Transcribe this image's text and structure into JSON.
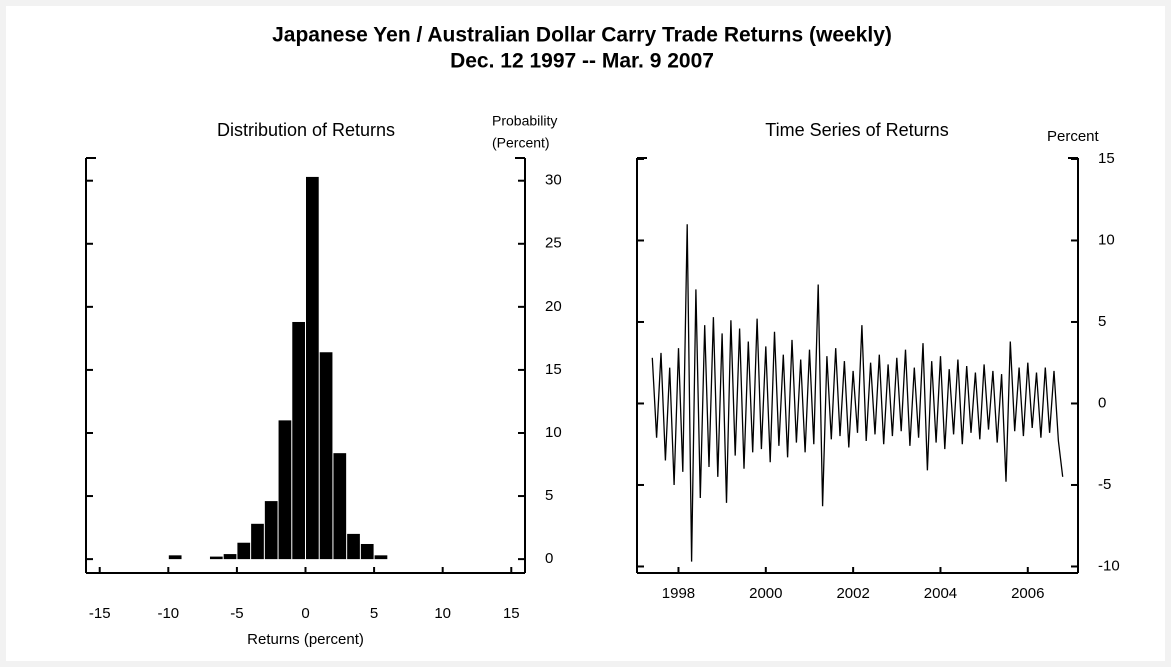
{
  "header": {
    "title": "Japanese Yen / Australian Dollar Carry Trade Returns (weekly)",
    "subtitle": "Dec. 12 1997 -- Mar. 9 2007"
  },
  "chart_data": [
    {
      "type": "histogram",
      "title": "Distribution of Returns",
      "xlabel": "Returns (percent)",
      "ylabel": [
        "Probability",
        "(Percent)"
      ],
      "color": "#000000",
      "bins": [
        -10,
        -9,
        -8,
        -7,
        -6,
        -5,
        -4,
        -3,
        -2,
        -1,
        0,
        1,
        2,
        3,
        4,
        5,
        6
      ],
      "values": [
        0.3,
        0,
        0,
        0.2,
        0.4,
        1.3,
        2.8,
        4.6,
        11,
        18.8,
        30.3,
        16.4,
        8.4,
        2.0,
        1.2,
        0.3
      ],
      "xlim": [
        -16,
        16
      ],
      "xticks": [
        -15,
        -10,
        -5,
        0,
        5,
        10,
        15
      ],
      "ylim": [
        -1.1,
        31.8
      ],
      "yticks": [
        0,
        5,
        10,
        15,
        20,
        25,
        30
      ]
    },
    {
      "type": "line",
      "title": "Time Series of Returns",
      "ylabel": [
        "Percent"
      ],
      "color": "#000000",
      "x": [
        1997.4,
        1997.5,
        1997.6,
        1997.7,
        1997.8,
        1997.9,
        1998.0,
        1998.1,
        1998.2,
        1998.3,
        1998.4,
        1998.5,
        1998.6,
        1998.7,
        1998.8,
        1998.9,
        1999.0,
        1999.1,
        1999.2,
        1999.3,
        1999.4,
        1999.5,
        1999.6,
        1999.7,
        1999.8,
        1999.9,
        2000.0,
        2000.1,
        2000.2,
        2000.3,
        2000.4,
        2000.5,
        2000.6,
        2000.7,
        2000.8,
        2000.9,
        2001.0,
        2001.1,
        2001.2,
        2001.3,
        2001.4,
        2001.5,
        2001.6,
        2001.7,
        2001.8,
        2001.9,
        2002.0,
        2002.1,
        2002.2,
        2002.3,
        2002.4,
        2002.5,
        2002.6,
        2002.7,
        2002.8,
        2002.9,
        2003.0,
        2003.1,
        2003.2,
        2003.3,
        2003.4,
        2003.5,
        2003.6,
        2003.7,
        2003.8,
        2003.9,
        2004.0,
        2004.1,
        2004.2,
        2004.3,
        2004.4,
        2004.5,
        2004.6,
        2004.7,
        2004.8,
        2004.9,
        2005.0,
        2005.1,
        2005.2,
        2005.3,
        2005.4,
        2005.5,
        2005.6,
        2005.7,
        2005.8,
        2005.9,
        2006.0,
        2006.1,
        2006.2,
        2006.3,
        2006.4,
        2006.5,
        2006.6,
        2006.7,
        2006.8
      ],
      "values": [
        2.8,
        -2.1,
        3.1,
        -3.5,
        2.2,
        -5.0,
        3.4,
        -4.2,
        11.0,
        -9.7,
        7.0,
        -5.8,
        4.8,
        -3.9,
        5.3,
        -4.5,
        4.3,
        -6.1,
        5.1,
        -3.2,
        4.6,
        -4.0,
        3.8,
        -3.0,
        5.2,
        -2.8,
        3.5,
        -3.6,
        4.4,
        -2.6,
        3.0,
        -3.3,
        3.9,
        -2.4,
        2.7,
        -3.0,
        3.3,
        -2.5,
        7.3,
        -6.3,
        2.9,
        -2.2,
        3.4,
        -2.0,
        2.6,
        -2.7,
        2.0,
        -1.8,
        4.8,
        -2.3,
        2.5,
        -1.9,
        3.0,
        -2.5,
        2.4,
        -2.0,
        2.8,
        -1.7,
        3.3,
        -2.6,
        2.2,
        -2.1,
        3.7,
        -4.1,
        2.6,
        -2.4,
        2.9,
        -2.8,
        2.1,
        -1.9,
        2.7,
        -2.5,
        2.3,
        -1.8,
        1.9,
        -2.2,
        2.4,
        -1.6,
        2.0,
        -2.4,
        1.8,
        -4.8,
        3.8,
        -1.7,
        2.2,
        -2.0,
        2.5,
        -1.5,
        1.9,
        -2.1,
        2.2,
        -1.8,
        2.0,
        -2.3,
        -4.5
      ],
      "xlim": [
        1997.05,
        2007.15
      ],
      "xticks": [
        1998,
        2000,
        2002,
        2004,
        2006
      ],
      "ylim": [
        -10.4,
        15.06
      ],
      "yticks": [
        -10,
        -5,
        0,
        5,
        10,
        15
      ]
    }
  ]
}
